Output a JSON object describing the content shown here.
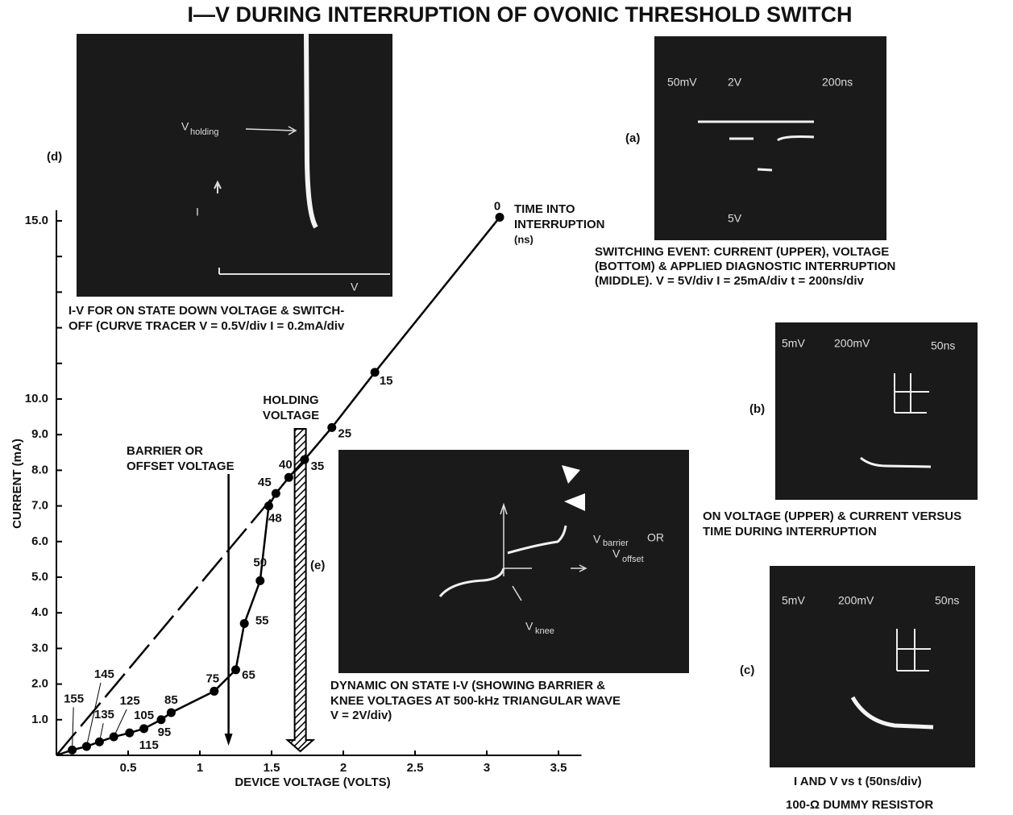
{
  "chart_data": {
    "type": "scatter",
    "title": "I—V DURING INTERRUPTION OF OVONIC THRESHOLD SWITCH",
    "x_label": "DEVICE VOLTAGE (VOLTS)",
    "y_label": "CURRENT (mA)",
    "xlim": [
      0,
      3.66
    ],
    "ylim": [
      0,
      15.3
    ],
    "xticks": [
      0.5,
      1,
      1.5,
      2,
      2.5,
      3,
      3.5
    ],
    "yticks": [
      {
        "value": 1,
        "label": "1.0"
      },
      {
        "value": 2,
        "label": "2.0"
      },
      {
        "value": 3,
        "label": "3.0"
      },
      {
        "value": 4,
        "label": "4.0"
      },
      {
        "value": 5,
        "label": "5.0"
      },
      {
        "value": 6,
        "label": "6.0"
      },
      {
        "value": 7,
        "label": "7.0"
      },
      {
        "value": 8,
        "label": "8.0"
      },
      {
        "value": 9,
        "label": "9.0"
      },
      {
        "value": 10,
        "label": "10.0"
      },
      {
        "value": 15,
        "label": "15.0"
      }
    ],
    "yminorticks": [
      11,
      12,
      13,
      14
    ],
    "color": "#000000",
    "x": [
      3.09,
      2.22,
      1.92,
      1.73,
      1.62,
      1.53,
      1.48,
      1.42,
      1.31,
      1.25,
      1.1,
      0.8,
      0.73,
      0.61,
      0.51,
      0.4,
      0.3,
      0.21,
      0.11
    ],
    "values": [
      15.1,
      10.75,
      9.2,
      8.3,
      7.8,
      7.35,
      7.0,
      4.9,
      3.7,
      2.4,
      1.8,
      1.2,
      1.0,
      0.75,
      0.63,
      0.52,
      0.38,
      0.25,
      0.15
    ],
    "times": [
      0,
      15,
      25,
      35,
      40,
      45,
      48,
      50,
      55,
      65,
      75,
      85,
      95,
      105,
      115,
      125,
      135,
      145,
      155
    ],
    "time_note": [
      "TIME INTO",
      "INTERRUPTION",
      "(ns)"
    ],
    "annotations": [
      {
        "lines": [
          "BARRIER OR",
          "OFFSET VOLTAGE"
        ],
        "x": 1.2
      },
      {
        "lines": [
          "HOLDING",
          "VOLTAGE"
        ],
        "x": 1.7
      }
    ]
  },
  "panels": [
    {
      "label": "(d)",
      "texts": [
        "V",
        "holding",
        "I",
        "V"
      ],
      "caption": [
        "I-V FOR ON STATE DOWN VOLTAGE & SWITCH-",
        "OFF (CURVE TRACER V = 0.5V/div  I = 0.2mA/div"
      ]
    },
    {
      "label": "(a)",
      "texts": [
        "50mV",
        "2V",
        "200ns",
        "5V"
      ],
      "caption": [
        "SWITCHING EVENT: CURRENT (UPPER), VOLTAGE",
        "(BOTTOM) & APPLIED DIAGNOSTIC INTERRUPTION",
        "(MIDDLE). V = 5V/div  I = 25mA/div  t = 200ns/div"
      ]
    },
    {
      "label": "(b)",
      "texts": [
        "5mV",
        "200mV",
        "50ns"
      ],
      "caption": [
        "ON VOLTAGE (UPPER) & CURRENT VERSUS",
        "TIME DURING INTERRUPTION"
      ]
    },
    {
      "label": "(c)",
      "texts": [
        "5mV",
        "200mV",
        "50ns"
      ],
      "caption": [
        "I AND V  vs t (50ns/div)",
        "100-Ω DUMMY RESISTOR"
      ]
    },
    {
      "label": "(e)",
      "texts": [
        "V",
        "barrier",
        "OR",
        "V",
        "offset",
        "V",
        "knee"
      ],
      "caption": [
        "DYNAMIC ON STATE I-V (SHOWING BARRIER &",
        "KNEE VOLTAGES AT 500-kHz TRIANGULAR WAVE",
        "V = 2V/div)"
      ]
    }
  ]
}
